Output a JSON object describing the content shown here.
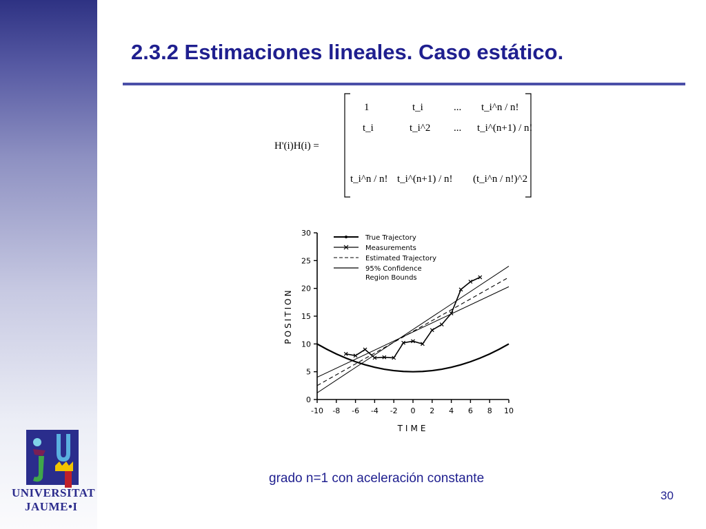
{
  "slide": {
    "title": "2.3.2 Estimaciones lineales. Caso estático.",
    "caption": "grado n=1 con aceleración constante",
    "page_number": "30"
  },
  "branding": {
    "line1": "UNIVERSITAT",
    "line2": "JAUME•I",
    "logo_icon": "universitat-jaume-i-logo"
  },
  "formula": {
    "lhs": "H'(i)H(i) =",
    "rows": [
      [
        "1",
        "t_i",
        "...",
        "t_i^n / n!"
      ],
      [
        "t_i",
        "t_i^2",
        "...",
        "t_i^(n+1) / n!"
      ],
      [
        "t_i^n / n!",
        "t_i^(n+1) / n!",
        "",
        "(t_i^n / n!)^2"
      ]
    ]
  },
  "colors": {
    "title": "#1f1f8f",
    "sidebar_top": "#2e3283",
    "rule": "#4b4fa8"
  },
  "chart_data": {
    "type": "line",
    "xlabel": "TIME",
    "ylabel": "POSITION",
    "xlim": [
      -10,
      10
    ],
    "ylim": [
      0,
      30
    ],
    "xticks": [
      -10,
      -8,
      -6,
      -4,
      -2,
      0,
      2,
      4,
      6,
      8,
      10
    ],
    "yticks": [
      0,
      5,
      10,
      15,
      20,
      25,
      30
    ],
    "legend_position": "top-left",
    "series": [
      {
        "name": "True Trajectory",
        "style": "solid-thick",
        "x": [
          -10,
          -9,
          -8,
          -7,
          -6,
          -5,
          -4,
          -3,
          -2,
          -1,
          0,
          1,
          2,
          3,
          4,
          5,
          6,
          7,
          8,
          9,
          10
        ],
        "y": [
          10,
          9.05,
          8.2,
          7.45,
          6.8,
          6.25,
          5.8,
          5.45,
          5.2,
          5.05,
          5.0,
          5.05,
          5.2,
          5.45,
          5.8,
          6.25,
          6.8,
          7.45,
          8.2,
          9.05,
          10
        ]
      },
      {
        "name": "Measurements",
        "style": "solid-x",
        "x": [
          -7,
          -6,
          -5,
          -4,
          -3,
          -2,
          -1,
          0,
          1,
          2,
          3,
          4,
          5,
          6,
          7
        ],
        "y": [
          8.2,
          7.9,
          9.0,
          7.5,
          7.6,
          7.5,
          10.2,
          10.5,
          10.0,
          12.5,
          13.5,
          15.5,
          19.8,
          21.2,
          22.0
        ]
      },
      {
        "name": "Estimated Trajectory",
        "style": "dashed",
        "x": [
          -10,
          10
        ],
        "y": [
          2.5,
          22.0
        ]
      },
      {
        "name": "95% Confidence Region Bounds",
        "style": "thin",
        "bounds": [
          {
            "x": [
              -10,
              10
            ],
            "y": [
              1.2,
              24.0
            ]
          },
          {
            "x": [
              -10,
              10
            ],
            "y": [
              4.0,
              20.3
            ]
          }
        ]
      }
    ]
  }
}
